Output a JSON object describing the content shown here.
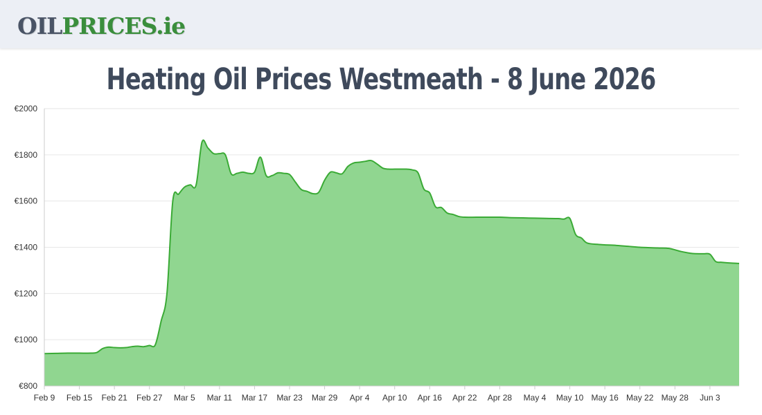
{
  "header": {
    "logo_oil": "OIL",
    "logo_prices": "PRICES",
    "logo_tld": ".ie"
  },
  "page": {
    "title": "Heating Oil Prices Westmeath - 8 June 2026"
  },
  "chart_data": {
    "type": "area",
    "title": "Heating Oil Prices Westmeath - 8 June 2026",
    "xlabel": "",
    "ylabel": "",
    "ylim": [
      800,
      2000
    ],
    "y_ticks": [
      800,
      1000,
      1200,
      1400,
      1600,
      1800,
      2000
    ],
    "y_tick_prefix": "€",
    "x_tick_labels": [
      "Feb 9",
      "Feb 15",
      "Feb 21",
      "Feb 27",
      "Mar 5",
      "Mar 11",
      "Mar 17",
      "Mar 23",
      "Mar 29",
      "Apr 4",
      "Apr 10",
      "Apr 16",
      "Apr 22",
      "Apr 28",
      "May 4",
      "May 10",
      "May 16",
      "May 22",
      "May 28",
      "Jun 3"
    ],
    "x_start": "2026-02-09",
    "x_end": "2026-06-08",
    "grid": true,
    "line_color": "#3aaa35",
    "fill_color": "#90d690",
    "series": [
      {
        "values": [
          [
            "2026-02-09",
            940
          ],
          [
            "2026-02-11",
            941
          ],
          [
            "2026-02-13",
            942
          ],
          [
            "2026-02-15",
            942
          ],
          [
            "2026-02-17",
            942
          ],
          [
            "2026-02-18",
            945
          ],
          [
            "2026-02-19",
            962
          ],
          [
            "2026-02-20",
            968
          ],
          [
            "2026-02-21",
            966
          ],
          [
            "2026-02-22",
            965
          ],
          [
            "2026-02-23",
            966
          ],
          [
            "2026-02-24",
            970
          ],
          [
            "2026-02-25",
            972
          ],
          [
            "2026-02-26",
            970
          ],
          [
            "2026-02-27",
            975
          ],
          [
            "2026-02-28",
            978
          ],
          [
            "2026-03-01",
            1080
          ],
          [
            "2026-03-02",
            1200
          ],
          [
            "2026-03-03",
            1600
          ],
          [
            "2026-03-04",
            1630
          ],
          [
            "2026-03-05",
            1660
          ],
          [
            "2026-03-06",
            1670
          ],
          [
            "2026-03-07",
            1670
          ],
          [
            "2026-03-08",
            1855
          ],
          [
            "2026-03-09",
            1830
          ],
          [
            "2026-03-10",
            1805
          ],
          [
            "2026-03-11",
            1805
          ],
          [
            "2026-03-12",
            1800
          ],
          [
            "2026-03-13",
            1718
          ],
          [
            "2026-03-14",
            1720
          ],
          [
            "2026-03-15",
            1725
          ],
          [
            "2026-03-16",
            1720
          ],
          [
            "2026-03-17",
            1725
          ],
          [
            "2026-03-18",
            1790
          ],
          [
            "2026-03-19",
            1710
          ],
          [
            "2026-03-20",
            1710
          ],
          [
            "2026-03-21",
            1722
          ],
          [
            "2026-03-22",
            1720
          ],
          [
            "2026-03-23",
            1715
          ],
          [
            "2026-03-24",
            1682
          ],
          [
            "2026-03-25",
            1650
          ],
          [
            "2026-03-26",
            1642
          ],
          [
            "2026-03-27",
            1632
          ],
          [
            "2026-03-28",
            1638
          ],
          [
            "2026-03-29",
            1690
          ],
          [
            "2026-03-30",
            1725
          ],
          [
            "2026-03-31",
            1722
          ],
          [
            "2026-04-01",
            1718
          ],
          [
            "2026-04-02",
            1750
          ],
          [
            "2026-04-03",
            1765
          ],
          [
            "2026-04-04",
            1768
          ],
          [
            "2026-04-05",
            1772
          ],
          [
            "2026-04-06",
            1775
          ],
          [
            "2026-04-07",
            1760
          ],
          [
            "2026-04-08",
            1742
          ],
          [
            "2026-04-09",
            1738
          ],
          [
            "2026-04-10",
            1738
          ],
          [
            "2026-04-11",
            1738
          ],
          [
            "2026-04-12",
            1738
          ],
          [
            "2026-04-13",
            1735
          ],
          [
            "2026-04-14",
            1722
          ],
          [
            "2026-04-15",
            1652
          ],
          [
            "2026-04-16",
            1635
          ],
          [
            "2026-04-17",
            1575
          ],
          [
            "2026-04-18",
            1572
          ],
          [
            "2026-04-19",
            1548
          ],
          [
            "2026-04-20",
            1542
          ],
          [
            "2026-04-21",
            1533
          ],
          [
            "2026-04-22",
            1530
          ],
          [
            "2026-04-24",
            1530
          ],
          [
            "2026-04-26",
            1530
          ],
          [
            "2026-04-28",
            1530
          ],
          [
            "2026-04-30",
            1528
          ],
          [
            "2026-05-02",
            1527
          ],
          [
            "2026-05-04",
            1526
          ],
          [
            "2026-05-06",
            1525
          ],
          [
            "2026-05-08",
            1524
          ],
          [
            "2026-05-09",
            1522
          ],
          [
            "2026-05-10",
            1525
          ],
          [
            "2026-05-11",
            1455
          ],
          [
            "2026-05-12",
            1440
          ],
          [
            "2026-05-13",
            1418
          ],
          [
            "2026-05-15",
            1412
          ],
          [
            "2026-05-18",
            1408
          ],
          [
            "2026-05-20",
            1404
          ],
          [
            "2026-05-22",
            1400
          ],
          [
            "2026-05-25",
            1397
          ],
          [
            "2026-05-27",
            1395
          ],
          [
            "2026-05-29",
            1382
          ],
          [
            "2026-05-31",
            1373
          ],
          [
            "2026-06-02",
            1372
          ],
          [
            "2026-06-03",
            1370
          ],
          [
            "2026-06-04",
            1338
          ],
          [
            "2026-06-05",
            1335
          ],
          [
            "2026-06-07",
            1331
          ],
          [
            "2026-06-08",
            1330
          ]
        ]
      }
    ]
  }
}
